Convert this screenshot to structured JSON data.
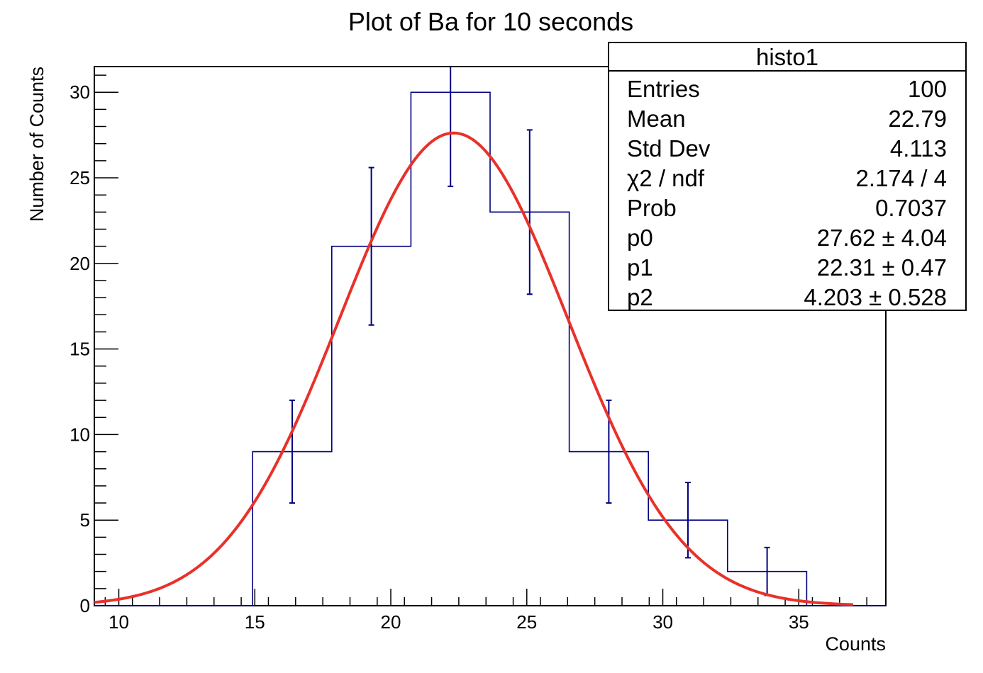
{
  "chart_data": {
    "type": "histogram",
    "title": "Plot of Ba for 10 seconds",
    "xlabel": "Counts",
    "ylabel": "Number of Counts",
    "xlim": [
      9.1,
      38.2
    ],
    "ylim": [
      0,
      31.5
    ],
    "x_ticks": [
      "10",
      "15",
      "20",
      "25",
      "30",
      "35"
    ],
    "x_tick_values": [
      10,
      15,
      20,
      25,
      30,
      35
    ],
    "y_ticks": [
      "0",
      "5",
      "10",
      "15",
      "20",
      "25",
      "30"
    ],
    "y_tick_values": [
      0,
      5,
      10,
      15,
      20,
      25,
      30
    ],
    "grid": false,
    "histogram": {
      "name": "histo1",
      "color": "#000080",
      "bin_edges": [
        9.1,
        12.01,
        14.92,
        17.83,
        20.74,
        23.65,
        26.56,
        29.47,
        32.38,
        35.29,
        38.2
      ],
      "counts": [
        0,
        0,
        9,
        21,
        30,
        23,
        9,
        5,
        2,
        0
      ],
      "errors_low": [
        0,
        0,
        3,
        4.6,
        5.5,
        4.8,
        3,
        2.2,
        1.4,
        0
      ],
      "errors_high": [
        0,
        0,
        3,
        4.6,
        5.5,
        4.8,
        3,
        2.2,
        1.4,
        0
      ]
    },
    "fit": {
      "type": "gaussian",
      "color": "#e8312a",
      "p0": 27.62,
      "p1": 22.31,
      "p2": 4.203,
      "x_range": [
        9.1,
        37
      ]
    }
  },
  "stats_box": {
    "title": "histo1",
    "rows": [
      {
        "label": "Entries",
        "value": "100"
      },
      {
        "label": "Mean",
        "value": "22.79"
      },
      {
        "label": "Std Dev",
        "value": "4.113"
      },
      {
        "label": "χ2 / ndf",
        "value": "2.174 / 4"
      },
      {
        "label": "Prob",
        "value": "0.7037"
      },
      {
        "label": "p0",
        "value": "27.62 ± 4.04"
      },
      {
        "label": "p1",
        "value": "22.31 ± 0.47"
      },
      {
        "label": "p2",
        "value": "4.203 ± 0.528"
      }
    ]
  }
}
